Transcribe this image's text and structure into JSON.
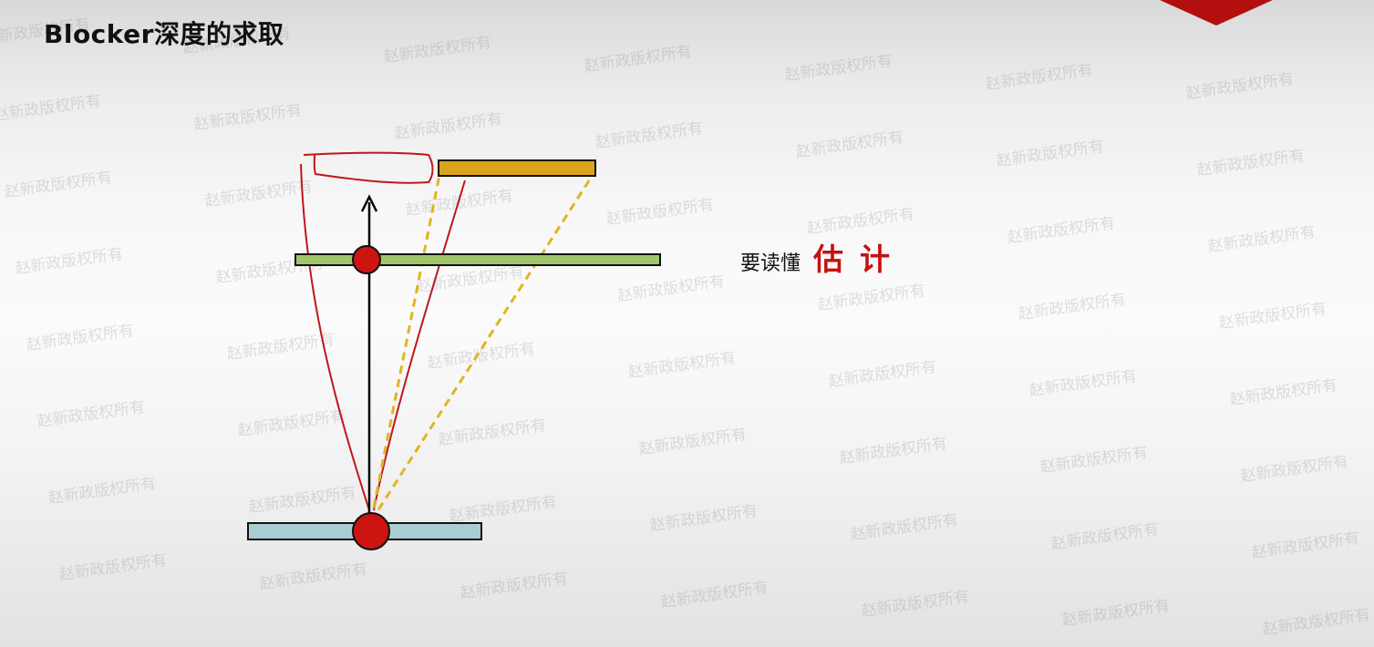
{
  "slide": {
    "title": "Blocker深度的求取",
    "watermark_text": "赵新政版权所有",
    "caption": {
      "prefix": "要读懂",
      "emphasis": "估计",
      "emphasis_color": "#c8100f"
    }
  },
  "colors": {
    "accent_red": "#b30f0f",
    "blocker_bar": "#d9a31a",
    "near_plane_bar": "#9fc66a",
    "receiver_bar": "#a9cdd3",
    "light_point": "#cc1411",
    "annotation_red": "#c0171a",
    "frustum_dash": "#e0b520"
  }
}
